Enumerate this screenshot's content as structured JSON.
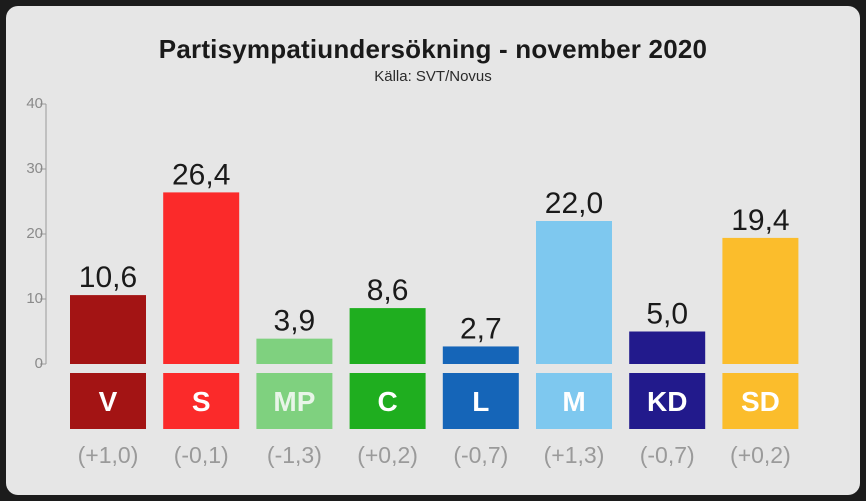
{
  "chart_data": {
    "type": "bar",
    "title": "Partisympatiundersökning - november 2020",
    "subtitle": "Källa: SVT/Novus",
    "ylim": [
      0,
      40
    ],
    "yticks": [
      "0",
      "10",
      "20",
      "30",
      "40"
    ],
    "grid": false,
    "categories": [
      "V",
      "S",
      "MP",
      "C",
      "L",
      "M",
      "KD",
      "SD"
    ],
    "values": [
      10.6,
      26.4,
      3.9,
      8.6,
      2.7,
      22.0,
      5.0,
      19.4
    ],
    "value_labels": [
      "10,6",
      "26,4",
      "3,9",
      "8,6",
      "2,7",
      "22,0",
      "5,0",
      "19,4"
    ],
    "changes": [
      "(+1,0)",
      "(-0,1)",
      "(-1,3)",
      "(+0,2)",
      "(-0,7)",
      "(+1,3)",
      "(-0,7)",
      "(+0,2)"
    ],
    "colors": [
      "#a31414",
      "#fb2a2a",
      "#7fd17f",
      "#1fae1f",
      "#1565b8",
      "#7ec8ef",
      "#221a8c",
      "#fbbd2c"
    ],
    "label_colors": [
      "#ffffff",
      "#ffffff",
      "#e8f5e8",
      "#ffffff",
      "#ffffff",
      "#ffffff",
      "#ffffff",
      "#ffffff"
    ]
  }
}
